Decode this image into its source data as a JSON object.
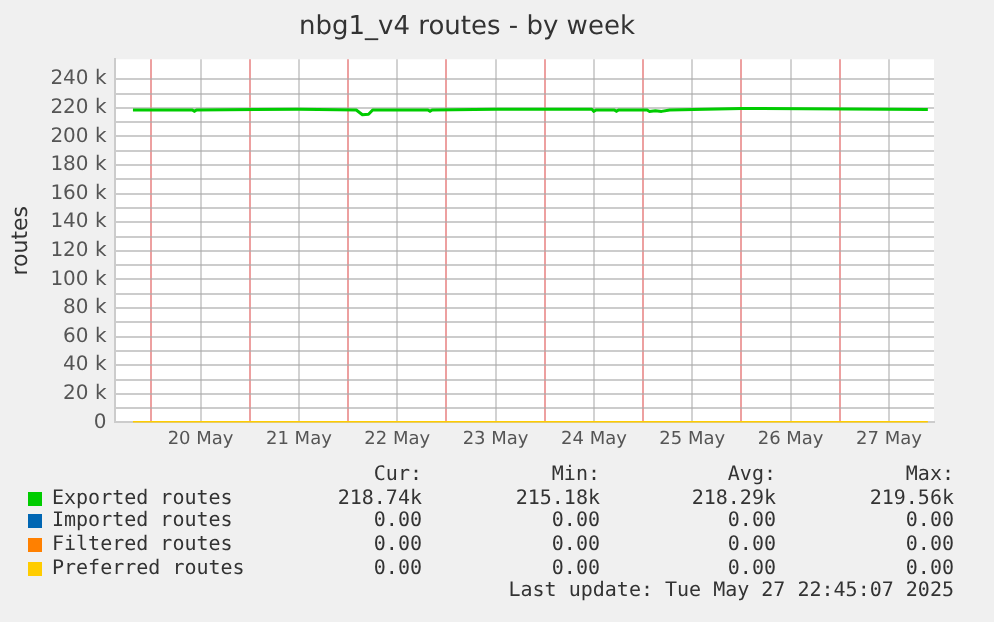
{
  "chart_data": {
    "type": "line",
    "title": "nbg1_v4 routes - by week",
    "ylabel": "routes",
    "xlim": [
      "2025-05-19T15:00",
      "2025-05-27T23:00"
    ],
    "xticks": [
      {
        "value": "2025-05-20T00:00",
        "label": null
      },
      {
        "value": "2025-05-20T12:00",
        "label": "20 May"
      },
      {
        "value": "2025-05-21T00:00",
        "label": null
      },
      {
        "value": "2025-05-21T12:00",
        "label": "21 May"
      },
      {
        "value": "2025-05-22T00:00",
        "label": null
      },
      {
        "value": "2025-05-22T12:00",
        "label": "22 May"
      },
      {
        "value": "2025-05-23T00:00",
        "label": null
      },
      {
        "value": "2025-05-23T12:00",
        "label": "23 May"
      },
      {
        "value": "2025-05-24T00:00",
        "label": null
      },
      {
        "value": "2025-05-24T12:00",
        "label": "24 May"
      },
      {
        "value": "2025-05-25T00:00",
        "label": null
      },
      {
        "value": "2025-05-25T12:00",
        "label": "25 May"
      },
      {
        "value": "2025-05-26T00:00",
        "label": null
      },
      {
        "value": "2025-05-26T12:00",
        "label": "26 May"
      },
      {
        "value": "2025-05-27T00:00",
        "label": null
      },
      {
        "value": "2025-05-27T12:00",
        "label": "27 May"
      }
    ],
    "ylim": [
      0,
      254000
    ],
    "yticks": [
      0,
      {
        "value": 10000,
        "label": null
      },
      {
        "value": 20000,
        "label": "20 k"
      },
      {
        "value": 30000,
        "label": null
      },
      {
        "value": 40000,
        "label": "40 k"
      },
      {
        "value": 50000,
        "label": null
      },
      {
        "value": 60000,
        "label": "60 k"
      },
      {
        "value": 70000,
        "label": null
      },
      {
        "value": 80000,
        "label": "80 k"
      },
      {
        "value": 90000,
        "label": null
      },
      {
        "value": 100000,
        "label": "100 k"
      },
      {
        "value": 110000,
        "label": null
      },
      {
        "value": 120000,
        "label": "120 k"
      },
      {
        "value": 130000,
        "label": null
      },
      {
        "value": 140000,
        "label": "140 k"
      },
      {
        "value": 150000,
        "label": null
      },
      {
        "value": 160000,
        "label": "160 k"
      },
      {
        "value": 170000,
        "label": null
      },
      {
        "value": 180000,
        "label": "180 k"
      },
      {
        "value": 190000,
        "label": null
      },
      {
        "value": 200000,
        "label": "200 k"
      },
      {
        "value": 210000,
        "label": null
      },
      {
        "value": 220000,
        "label": "220 k"
      },
      {
        "value": 230000,
        "label": null
      },
      {
        "value": 240000,
        "label": "240 k"
      }
    ],
    "grid": true,
    "legend": "bottom",
    "marker": "none",
    "line_style": "solid",
    "series": [
      {
        "name": "Exported routes",
        "color": "#00cc00",
        "x": [
          "2025-05-19T19:30",
          "2025-05-20T10:00",
          "2025-05-20T10:30",
          "2025-05-20T11:00",
          "2025-05-21T12:00",
          "2025-05-22T02:00",
          "2025-05-22T03:30",
          "2025-05-22T05:00",
          "2025-05-22T06:00",
          "2025-05-22T19:30",
          "2025-05-22T20:00",
          "2025-05-22T20:30",
          "2025-05-23T12:00",
          "2025-05-24T11:30",
          "2025-05-24T12:00",
          "2025-05-24T12:30",
          "2025-05-24T17:00",
          "2025-05-24T17:30",
          "2025-05-24T18:00",
          "2025-05-25T01:00",
          "2025-05-25T01:30",
          "2025-05-25T03:00",
          "2025-05-25T04:30",
          "2025-05-25T06:30",
          "2025-05-26T00:00",
          "2025-05-27T21:30"
        ],
        "values": [
          218500,
          218500,
          217500,
          218500,
          219000,
          218500,
          215180,
          215500,
          218500,
          218500,
          217500,
          218500,
          219000,
          219000,
          217500,
          218500,
          218500,
          217500,
          218500,
          218500,
          217500,
          218000,
          217500,
          218500,
          219560,
          218740
        ]
      },
      {
        "name": "Imported routes",
        "color": "#0066b3"
      },
      {
        "name": "Filtered routes",
        "color": "#ff8000"
      },
      {
        "name": "Preferred routes",
        "color": "#ffcc00",
        "x": [
          "2025-05-19T19:30",
          "2025-05-27T21:30"
        ],
        "values": [
          0,
          0
        ]
      }
    ],
    "annotations": [
      "Cur:",
      "Min:",
      "Avg:",
      "Max:",
      "218.74k",
      "215.18k",
      "218.29k",
      "219.56k",
      "0.00",
      "0.00",
      "0.00",
      "0.00",
      "0.00",
      "0.00",
      "0.00",
      "0.00",
      "0.00",
      "0.00",
      "0.00",
      "0.00",
      "Last update: Tue May 27 22:45:07 2025"
    ]
  }
}
